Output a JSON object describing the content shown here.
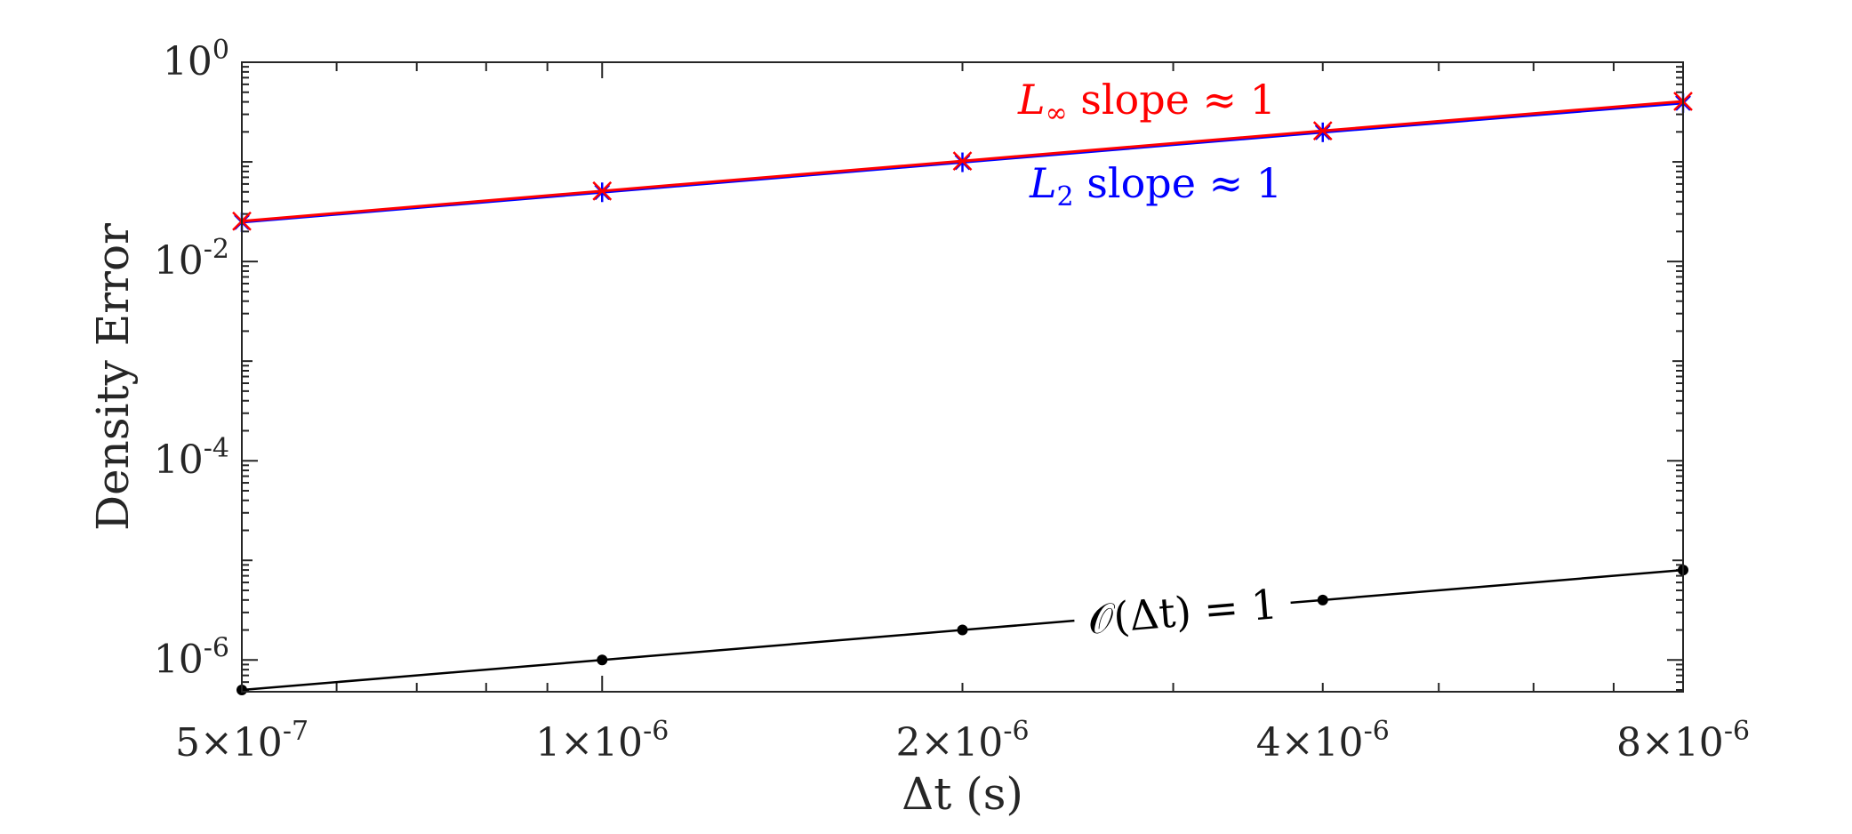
{
  "chart_data": {
    "type": "line",
    "xscale": "log",
    "yscale": "log",
    "xlabel": "Δt (s)",
    "ylabel": "Density Error",
    "xlim": [
      5e-07,
      8e-06
    ],
    "ylim": [
      4.8e-07,
      1
    ],
    "x": [
      5e-07,
      1e-06,
      2e-06,
      4e-06,
      8e-06
    ],
    "x_tick_labels": [
      {
        "value": 5e-07,
        "mantissa": "5×10",
        "exponent": "-7"
      },
      {
        "value": 1e-06,
        "mantissa": "1×10",
        "exponent": "-6"
      },
      {
        "value": 2e-06,
        "mantissa": "2×10",
        "exponent": "-6"
      },
      {
        "value": 4e-06,
        "mantissa": "4×10",
        "exponent": "-6"
      },
      {
        "value": 8e-06,
        "mantissa": "8×10",
        "exponent": "-6"
      }
    ],
    "y_tick_labels": [
      {
        "value": 1,
        "base": "10",
        "exponent": "0"
      },
      {
        "value": 0.01,
        "base": "10",
        "exponent": "-2"
      },
      {
        "value": 0.0001,
        "base": "10",
        "exponent": "-4"
      },
      {
        "value": 1e-06,
        "base": "10",
        "exponent": "-6"
      }
    ],
    "series": [
      {
        "key": "linf",
        "color": "#ff0000",
        "marker": "x",
        "values": [
          0.0254,
          0.051,
          0.102,
          0.205,
          0.405
        ]
      },
      {
        "key": "l2",
        "color": "#0000ff",
        "marker": "asterisk",
        "values": [
          0.0248,
          0.0495,
          0.099,
          0.198,
          0.39
        ]
      },
      {
        "key": "ref",
        "color": "#000000",
        "marker": "dot",
        "values": [
          5e-07,
          1e-06,
          2e-06,
          4e-06,
          8e-06
        ]
      }
    ],
    "annotations": {
      "linf": {
        "symbol": "L",
        "subscript": "∞",
        "text": " slope ≈ 1",
        "color": "#ff0000"
      },
      "l2": {
        "symbol": "L",
        "subscript": "2",
        "text": " slope ≈ 1",
        "color": "#0000ff"
      },
      "ref": {
        "text": "𝒪(Δt) = 1",
        "color": "#000000"
      }
    },
    "grid": false,
    "legend": "none"
  }
}
